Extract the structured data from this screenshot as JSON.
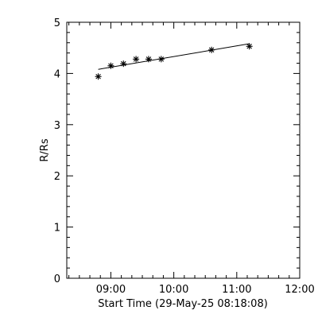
{
  "chart_data": {
    "type": "scatter",
    "title": "",
    "xlabel": "Start Time (29-May-25 08:18:08)",
    "ylabel": "R/Rs",
    "x_tick_labels": [
      "09:00",
      "10:00",
      "11:00",
      "12:00"
    ],
    "y_tick_labels": [
      "0",
      "1",
      "2",
      "3",
      "4",
      "5"
    ],
    "xlim": [
      "08:18",
      "12:00"
    ],
    "ylim": [
      0,
      5
    ],
    "grid": false,
    "series": [
      {
        "marker": "asterisk",
        "points": [
          {
            "x": "08:48",
            "y": 3.94
          },
          {
            "x": "09:00",
            "y": 4.15
          },
          {
            "x": "09:12",
            "y": 4.19
          },
          {
            "x": "09:24",
            "y": 4.28
          },
          {
            "x": "09:36",
            "y": 4.28
          },
          {
            "x": "09:48",
            "y": 4.28
          },
          {
            "x": "10:36",
            "y": 4.46
          },
          {
            "x": "11:12",
            "y": 4.53
          }
        ]
      }
    ],
    "fit_line": {
      "points": [
        {
          "x": "08:48",
          "y": 4.08
        },
        {
          "x": "11:12",
          "y": 4.58
        }
      ]
    }
  }
}
